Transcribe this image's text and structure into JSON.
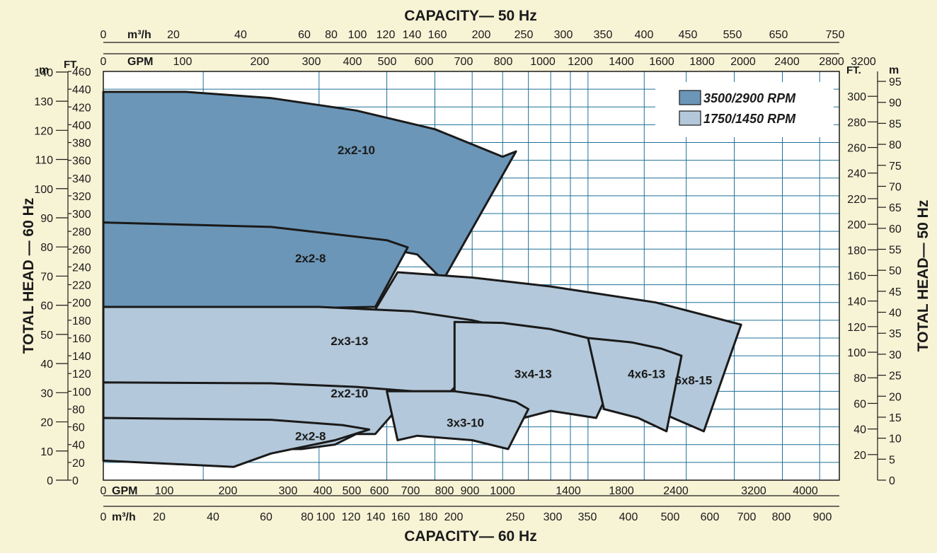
{
  "chart_data": {
    "type": "area",
    "title_top": "CAPACITY— 50 Hz",
    "title_bottom": "CAPACITY— 60 Hz",
    "ylabel_left": "TOTAL HEAD — 60 Hz",
    "ylabel_right": "TOTAL HEAD— 50 Hz",
    "unit_top_m3h": "m³/h",
    "unit_top_gpm": "GPM",
    "unit_bottom_gpm": "GPM",
    "unit_bottom_m3h": "m³/h",
    "unit_left_m": "m",
    "unit_left_ft": "FT.",
    "unit_right_ft": "FT.",
    "unit_right_m": "m",
    "x_scale": "log",
    "xlim_gpm_60hz": [
      55,
      4500
    ],
    "ylim_ft_60hz": [
      0,
      460
    ],
    "grid": true,
    "top_m3h_ticks": [
      "0",
      "20",
      "40",
      "60",
      "80",
      "100",
      "120",
      "140",
      "160",
      "200",
      "250",
      "300",
      "350",
      "400",
      "450",
      "550",
      "650",
      "750"
    ],
    "top_gpm_ticks": [
      "0",
      "100",
      "200",
      "300",
      "400",
      "500",
      "600",
      "700",
      "800",
      "1000",
      "1200",
      "1400",
      "1600",
      "1800",
      "2000",
      "2400",
      "2800",
      "3200"
    ],
    "bottom_gpm_ticks": [
      "0",
      "100",
      "200",
      "300",
      "400",
      "500",
      "600",
      "700",
      "800",
      "900",
      "1000",
      "1400",
      "1800",
      "2400",
      "3200",
      "4000"
    ],
    "bottom_m3h_ticks": [
      "0",
      "20",
      "40",
      "60",
      "80",
      "100",
      "120",
      "140",
      "160",
      "180",
      "200",
      "250",
      "300",
      "350",
      "400",
      "500",
      "600",
      "700",
      "800",
      "900"
    ],
    "left_m_ticks": [
      "0",
      "10",
      "20",
      "30",
      "40",
      "50",
      "60",
      "70",
      "80",
      "90",
      "100",
      "110",
      "120",
      "130",
      "140"
    ],
    "left_ft_ticks": [
      "0",
      "20",
      "40",
      "60",
      "80",
      "100",
      "120",
      "140",
      "160",
      "180",
      "200",
      "220",
      "240",
      "260",
      "280",
      "300",
      "320",
      "340",
      "360",
      "380",
      "400",
      "420",
      "440",
      "460"
    ],
    "right_ft_ticks": [
      "20",
      "40",
      "60",
      "80",
      "100",
      "120",
      "140",
      "160",
      "180",
      "200",
      "220",
      "240",
      "260",
      "280",
      "300"
    ],
    "right_m_ticks": [
      "0",
      "5",
      "10",
      "15",
      "20",
      "25",
      "30",
      "35",
      "40",
      "45",
      "50",
      "55",
      "60",
      "65",
      "70",
      "75",
      "80",
      "85",
      "90",
      "95"
    ],
    "legend": [
      {
        "label": "3500/2900 RPM",
        "color": "#6b96b8"
      },
      {
        "label": "1750/1450 RPM",
        "color": "#b3c8da"
      }
    ],
    "legend_position": "top-right",
    "series": [
      {
        "name": "2x2-10",
        "rpm": "3500/2900 RPM",
        "color": "#6b96b8",
        "gpm": [
          55,
          90,
          150,
          250,
          400,
          600,
          650,
          420,
          360,
          160,
          55
        ],
        "head_ft": [
          437,
          437,
          430,
          416,
          395,
          364,
          370,
          225,
          254,
          283,
          290
        ]
      },
      {
        "name": "2x2-8",
        "rpm": "3500/2900 RPM",
        "color": "#6b96b8",
        "gpm": [
          55,
          150,
          300,
          340,
          280,
          210,
          120,
          55
        ],
        "head_ft": [
          290,
          285,
          270,
          262,
          195,
          194,
          195,
          195
        ]
      },
      {
        "name": "6x8-15",
        "rpm": "1750/1450 RPM",
        "color": "#b3c8da",
        "gpm": [
          320,
          500,
          800,
          1500,
          2500,
          2000,
          1300,
          280
        ],
        "head_ft": [
          234,
          228,
          218,
          200,
          175,
          55,
          90,
          192
        ]
      },
      {
        "name": "2x3-13",
        "rpm": "1750/1450 RPM",
        "color": "#b3c8da",
        "gpm": [
          55,
          200,
          350,
          500,
          630,
          440,
          55
        ],
        "head_ft": [
          195,
          195,
          190,
          180,
          170,
          100,
          100
        ]
      },
      {
        "name": "3x4-13",
        "rpm": "1750/1450 RPM",
        "color": "#b3c8da",
        "gpm": [
          450,
          600,
          800,
          1000,
          1150,
          1250,
          1050,
          800,
          680,
          580,
          450
        ],
        "head_ft": [
          178,
          177,
          170,
          160,
          150,
          140,
          70,
          78,
          70,
          80,
          100
        ]
      },
      {
        "name": "4x6-13",
        "rpm": "1750/1450 RPM",
        "color": "#b3c8da",
        "gpm": [
          1000,
          1300,
          1550,
          1750,
          1600,
          1350,
          1100
        ],
        "head_ft": [
          160,
          155,
          148,
          140,
          55,
          70,
          80
        ]
      },
      {
        "name": "2x2-10",
        "rpm": "1750/1450 RPM",
        "color": "#b3c8da",
        "gpm": [
          55,
          150,
          250,
          350,
          280,
          250,
          220,
          180,
          55
        ],
        "head_ft": [
          110,
          109,
          105,
          100,
          52,
          52,
          40,
          35,
          35
        ]
      },
      {
        "name": "3x3-10",
        "rpm": "1750/1450 RPM",
        "color": "#b3c8da",
        "gpm": [
          300,
          450,
          550,
          650,
          700,
          620,
          500,
          360,
          320
        ],
        "head_ft": [
          100,
          100,
          95,
          88,
          80,
          35,
          45,
          50,
          45
        ]
      },
      {
        "name": "2x2-8",
        "rpm": "1750/1450 RPM",
        "color": "#b3c8da",
        "gpm": [
          55,
          150,
          230,
          270,
          220,
          150,
          120,
          55
        ],
        "head_ft": [
          70,
          68,
          62,
          57,
          45,
          30,
          15,
          22
        ]
      }
    ]
  }
}
